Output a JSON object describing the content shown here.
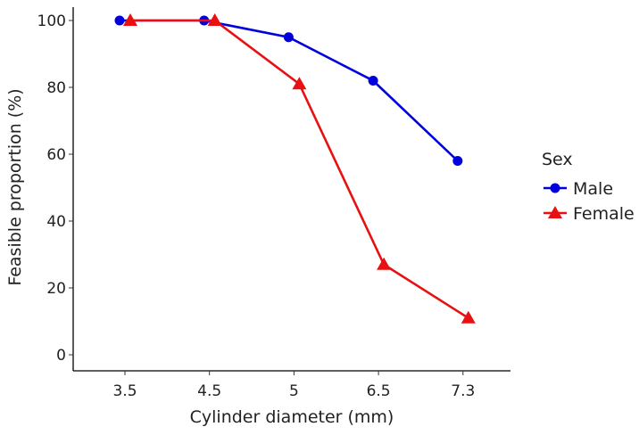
{
  "chart_data": {
    "type": "line",
    "title": "",
    "xlabel": "Cylinder diameter (mm)",
    "ylabel": "Feasible proportion (%)",
    "categories": [
      "3.5",
      "4.5",
      "5",
      "6.5",
      "7.3"
    ],
    "ylim": [
      0,
      100
    ],
    "yticks": [
      0,
      20,
      40,
      60,
      80,
      100
    ],
    "grid": false,
    "legend": {
      "title": "Sex",
      "placement": "right"
    },
    "series": [
      {
        "name": "Male",
        "color": "#0000dd",
        "marker": "circle",
        "values": [
          100,
          100,
          95,
          82,
          58
        ]
      },
      {
        "name": "Female",
        "color": "#e81010",
        "marker": "triangle",
        "values": [
          100,
          100,
          81,
          27,
          11
        ]
      }
    ]
  }
}
